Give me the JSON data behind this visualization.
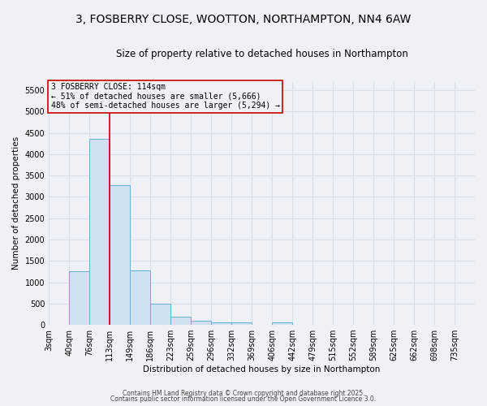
{
  "title1": "3, FOSBERRY CLOSE, WOOTTON, NORTHAMPTON, NN4 6AW",
  "title2": "Size of property relative to detached houses in Northampton",
  "xlabel": "Distribution of detached houses by size in Northampton",
  "ylabel": "Number of detached properties",
  "bin_labels": [
    "3sqm",
    "40sqm",
    "76sqm",
    "113sqm",
    "149sqm",
    "186sqm",
    "223sqm",
    "259sqm",
    "296sqm",
    "332sqm",
    "369sqm",
    "406sqm",
    "442sqm",
    "479sqm",
    "515sqm",
    "552sqm",
    "589sqm",
    "625sqm",
    "662sqm",
    "698sqm",
    "735sqm"
  ],
  "bar_values": [
    0,
    1250,
    4350,
    3280,
    1270,
    490,
    200,
    90,
    60,
    60,
    0,
    60,
    0,
    0,
    0,
    0,
    0,
    0,
    0,
    0,
    0
  ],
  "bar_color": "#cfe0f0",
  "bar_edge_color": "#6aafd6",
  "ylim": [
    0,
    5700
  ],
  "yticks": [
    0,
    500,
    1000,
    1500,
    2000,
    2500,
    3000,
    3500,
    4000,
    4500,
    5000,
    5500
  ],
  "vline_x": 3,
  "vline_color": "#cc0000",
  "annotation_text": "3 FOSBERRY CLOSE: 114sqm\n← 51% of detached houses are smaller (5,666)\n48% of semi-detached houses are larger (5,294) →",
  "annotation_box_color": "#cc0000",
  "footer1": "Contains HM Land Registry data © Crown copyright and database right 2025.",
  "footer2": "Contains public sector information licensed under the Open Government Licence 3.0.",
  "bg_color": "#eef2f7",
  "grid_color": "#d8dfe8",
  "title_fontsize": 10,
  "subtitle_fontsize": 8.5,
  "axis_label_fontsize": 7.5,
  "tick_fontsize": 7,
  "annot_fontsize": 7
}
